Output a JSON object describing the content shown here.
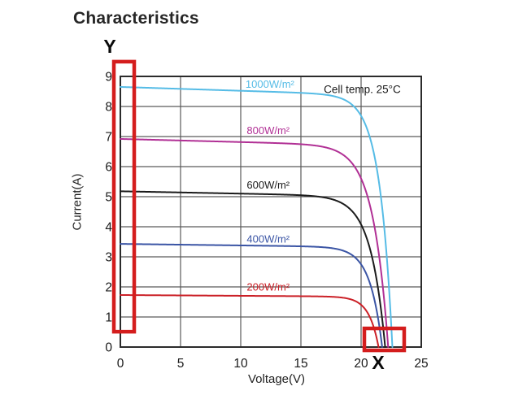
{
  "title": "Characteristics",
  "markers": {
    "y_label": "Y",
    "x_label": "X"
  },
  "chart_data": {
    "type": "line",
    "title": "Characteristics",
    "xlabel": "Voltage(V)",
    "ylabel": "Current(A)",
    "xlim": [
      0,
      25
    ],
    "ylim": [
      0,
      9
    ],
    "x_ticks": [
      0,
      5,
      10,
      15,
      20,
      25
    ],
    "y_ticks": [
      0,
      1,
      2,
      3,
      4,
      5,
      6,
      7,
      8,
      9
    ],
    "grid": true,
    "note": {
      "text": "Cell temp. 25°C",
      "v": 20.1,
      "i": 8.45
    },
    "series": [
      {
        "name": "1000W/m²",
        "irradiance_w_m2": 1000,
        "color": "#56bce6",
        "isc_A": 8.65,
        "voc_V": 22.6,
        "vt": 1.05,
        "slope": 0.0128,
        "label_v": 10.4,
        "label_i": 8.62
      },
      {
        "name": "800W/m²",
        "irradiance_w_m2": 800,
        "color": "#b13095",
        "isc_A": 6.92,
        "voc_V": 22.25,
        "vt": 1.25,
        "slope": 0.0103,
        "label_v": 10.5,
        "label_i": 7.08
      },
      {
        "name": "600W/m²",
        "irradiance_w_m2": 600,
        "color": "#1b1b1b",
        "isc_A": 5.18,
        "voc_V": 22.0,
        "vt": 1.2,
        "slope": 0.0078,
        "label_v": 10.5,
        "label_i": 5.27
      },
      {
        "name": "400W/m²",
        "irradiance_w_m2": 400,
        "color": "#3b55a5",
        "isc_A": 3.43,
        "voc_V": 21.75,
        "vt": 1.0,
        "slope": 0.0051,
        "label_v": 10.5,
        "label_i": 3.47
      },
      {
        "name": "200W/m²",
        "irradiance_w_m2": 200,
        "color": "#cb2027",
        "isc_A": 1.73,
        "voc_V": 21.45,
        "vt": 0.8,
        "slope": 0.0026,
        "label_v": 10.5,
        "label_i": 1.88
      }
    ],
    "highlights": [
      {
        "id": "y-axis-region",
        "v0": -0.54,
        "v1": 1.15,
        "i0": 0.51,
        "i1": 9.49,
        "color": "#d41d1d"
      },
      {
        "id": "x-axis-region",
        "v0": 20.27,
        "v1": 23.58,
        "i0": -0.11,
        "i1": 0.62,
        "color": "#d41d1d"
      }
    ],
    "style": {
      "grid_color": "#5a5a5a",
      "border_color": "#2b2b2b",
      "tick_text_color": "#1a1a1a",
      "note_text_color": "#1a1a1a"
    }
  }
}
